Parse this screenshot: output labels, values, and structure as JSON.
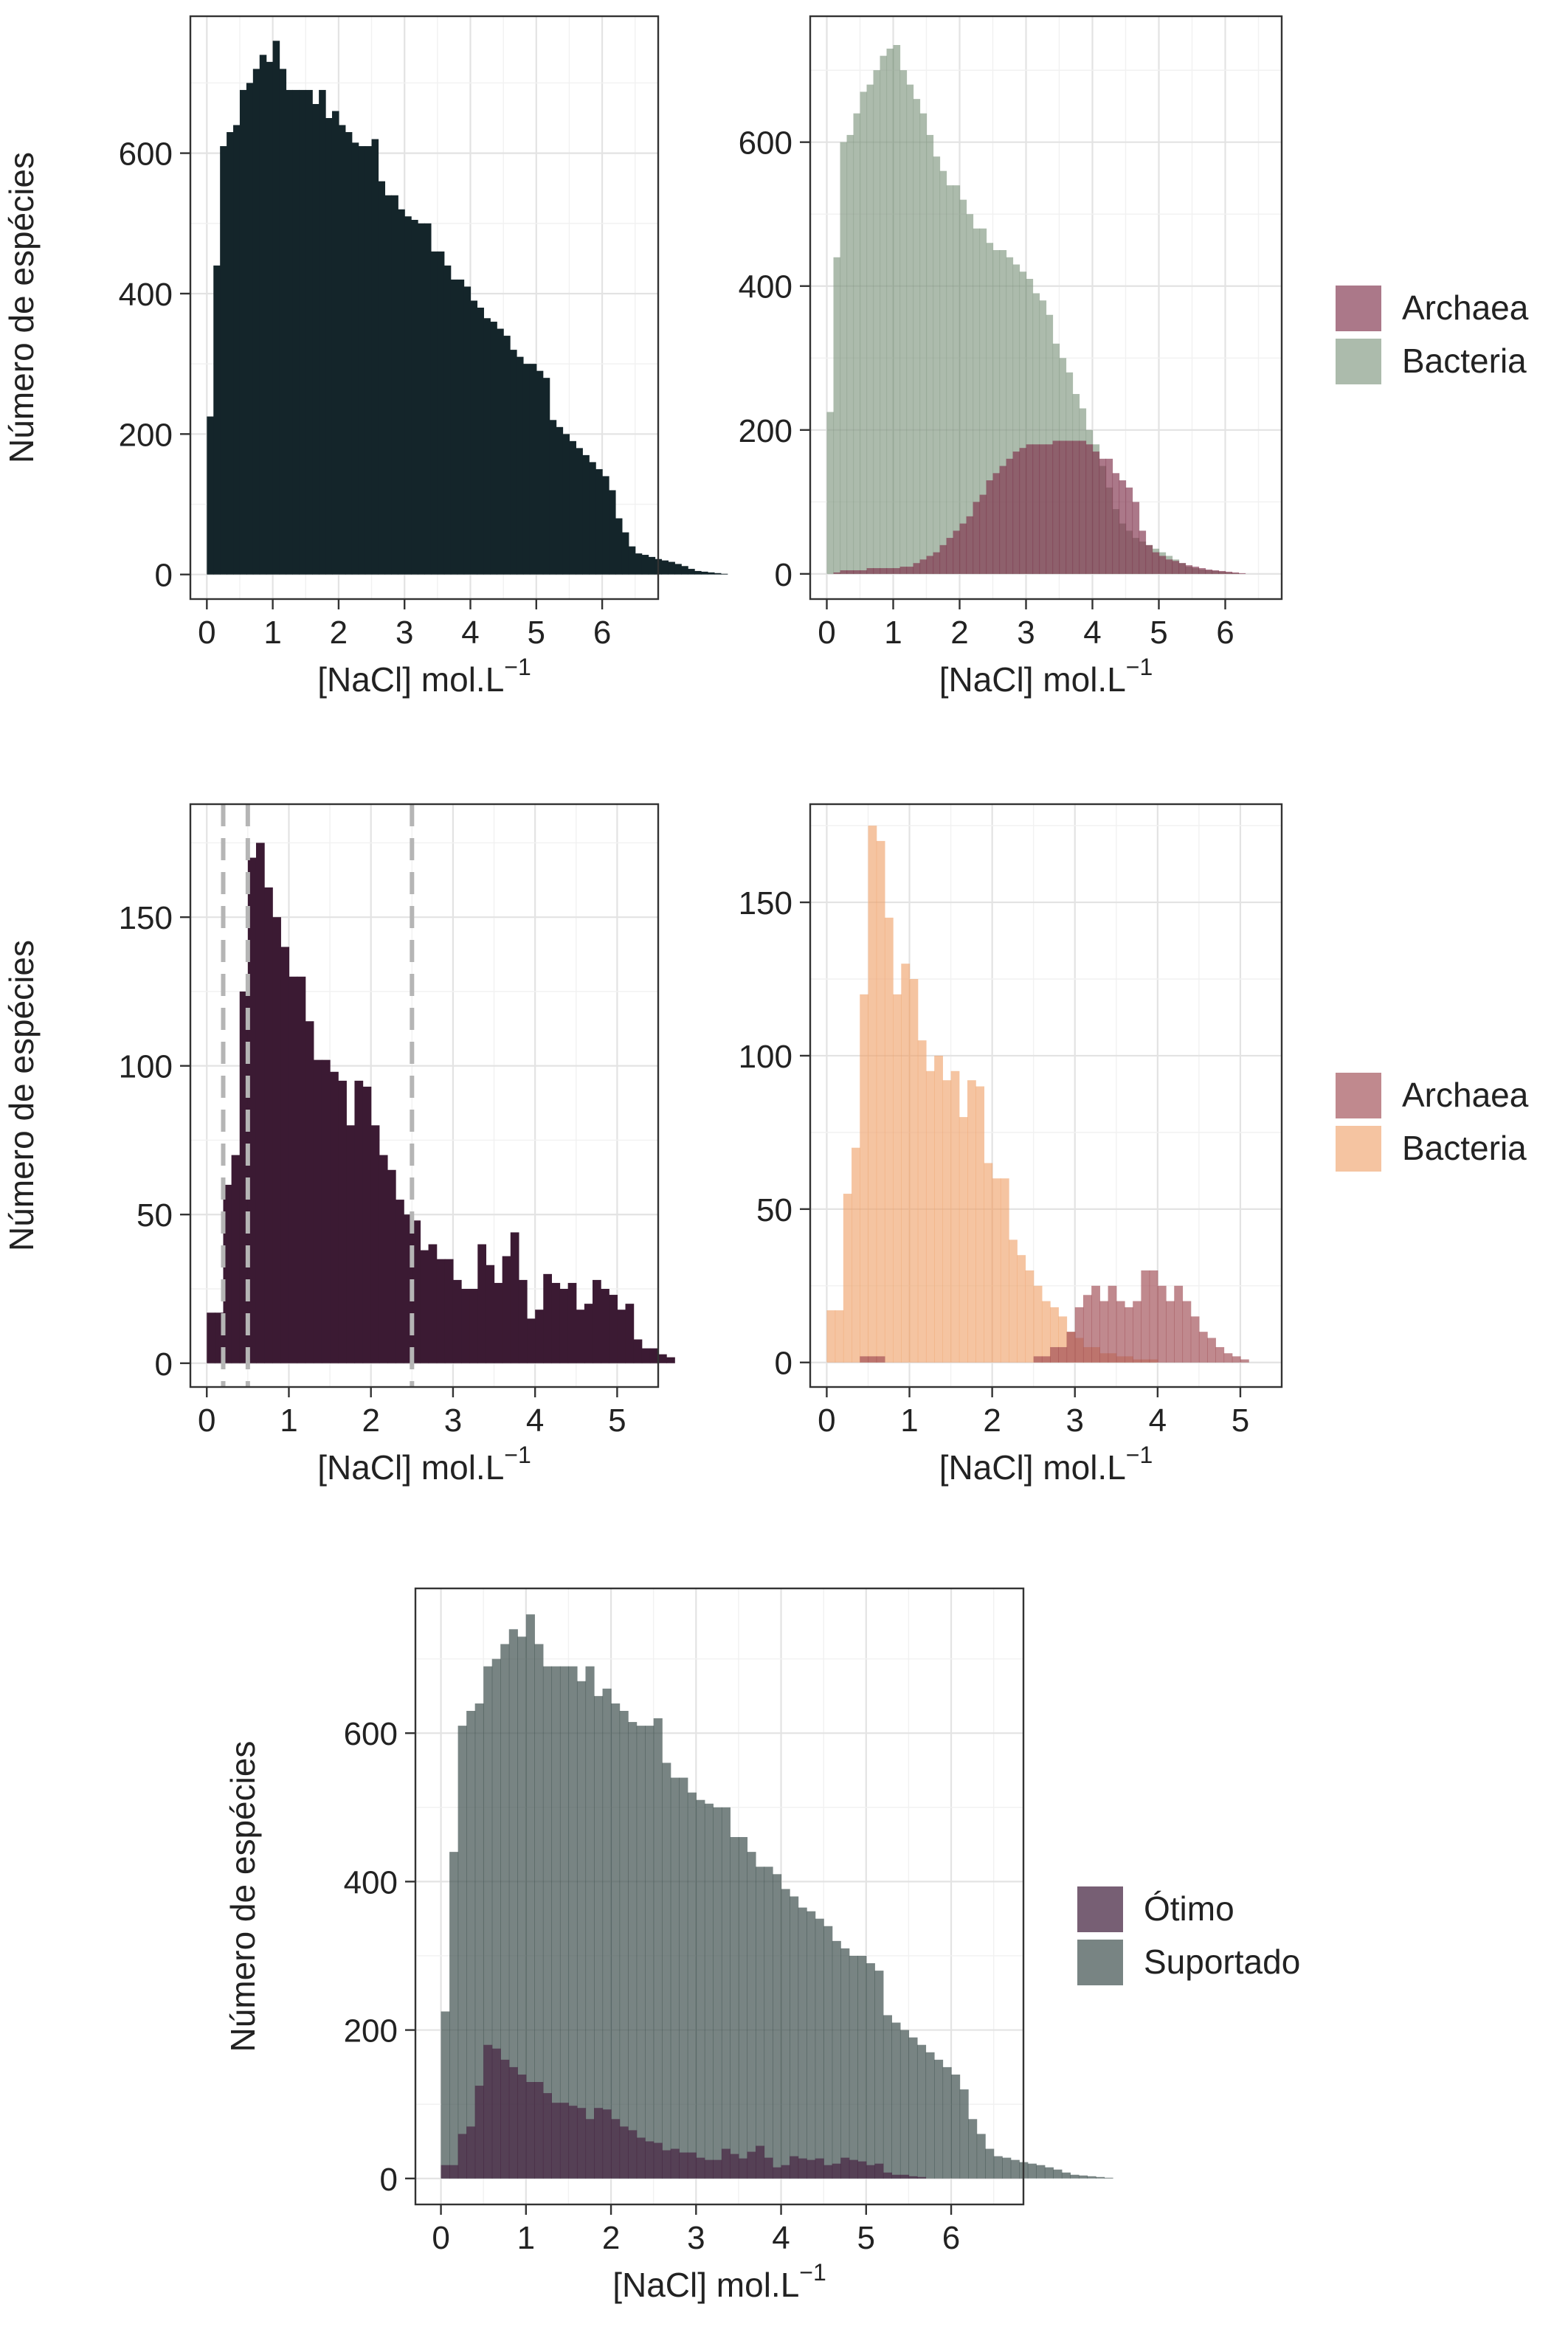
{
  "figure": {
    "ylabel": "Número de espécies",
    "xlabel_main": "[NaCl] mol.L",
    "xlabel_sup": "−1"
  },
  "chart_data": [
    {
      "id": "p1",
      "type": "histogram",
      "xlabel": "[NaCl] mol.L⁻¹",
      "ylabel": "Número de espécies",
      "xlim": [
        -0.25,
        6.85
      ],
      "ylim": [
        -35,
        795
      ],
      "x_ticks": [
        0,
        1,
        2,
        3,
        4,
        5,
        6
      ],
      "y_ticks": [
        0,
        200,
        400,
        600
      ],
      "grid": true,
      "bin_start": 0,
      "bin_width": 0.1,
      "series": [
        {
          "color": "#14252a",
          "alpha": 1.0,
          "values": [
            225,
            440,
            610,
            630,
            640,
            690,
            700,
            720,
            740,
            730,
            760,
            720,
            690,
            690,
            690,
            690,
            670,
            690,
            650,
            660,
            640,
            630,
            615,
            610,
            610,
            620,
            560,
            540,
            540,
            520,
            510,
            505,
            500,
            500,
            460,
            460,
            440,
            420,
            420,
            410,
            390,
            380,
            365,
            360,
            350,
            340,
            320,
            310,
            300,
            300,
            290,
            280,
            220,
            210,
            200,
            190,
            180,
            170,
            160,
            150,
            140,
            120,
            80,
            60,
            40,
            30,
            28,
            25,
            22,
            20,
            18,
            15,
            12,
            8,
            5,
            4,
            3,
            2,
            1,
            0,
            0
          ]
        }
      ]
    },
    {
      "id": "p2",
      "type": "histogram",
      "xlabel": "[NaCl] mol.L⁻¹",
      "ylabel": "",
      "xlim": [
        -0.25,
        6.85
      ],
      "ylim": [
        -35,
        775
      ],
      "x_ticks": [
        0,
        1,
        2,
        3,
        4,
        5,
        6
      ],
      "y_ticks": [
        0,
        200,
        400,
        600
      ],
      "grid": true,
      "legend": {
        "position": "right",
        "entries": [
          "Archaea",
          "Bacteria"
        ]
      },
      "bin_start": 0,
      "bin_width": 0.1,
      "series": [
        {
          "name": "Bacteria",
          "color": "#7f9680",
          "alpha": 0.65,
          "values": [
            225,
            440,
            600,
            610,
            640,
            670,
            680,
            700,
            720,
            730,
            735,
            700,
            680,
            660,
            640,
            610,
            580,
            560,
            540,
            540,
            520,
            500,
            480,
            480,
            460,
            450,
            450,
            440,
            430,
            420,
            410,
            390,
            380,
            360,
            320,
            300,
            280,
            250,
            230,
            200,
            180,
            150,
            120,
            90,
            70,
            60,
            50,
            45,
            40,
            35,
            30,
            25,
            20,
            15,
            10,
            8,
            6,
            5,
            4,
            3,
            2,
            1,
            0,
            0
          ]
        },
        {
          "name": "Archaea",
          "color": "#7e2f4a",
          "alpha": 0.65,
          "values": [
            0,
            2,
            5,
            5,
            5,
            5,
            8,
            8,
            8,
            8,
            8,
            10,
            10,
            15,
            20,
            25,
            30,
            40,
            50,
            60,
            70,
            80,
            100,
            110,
            130,
            140,
            150,
            160,
            170,
            175,
            180,
            180,
            180,
            180,
            185,
            185,
            185,
            185,
            185,
            180,
            170,
            160,
            160,
            140,
            130,
            120,
            100,
            60,
            40,
            30,
            25,
            20,
            18,
            15,
            12,
            10,
            8,
            6,
            5,
            4,
            3,
            2,
            1,
            0
          ]
        }
      ]
    },
    {
      "id": "p3",
      "type": "histogram",
      "xlabel": "[NaCl] mol.L⁻¹",
      "ylabel": "Número de espécies",
      "xlim": [
        -0.2,
        5.5
      ],
      "ylim": [
        -8,
        188
      ],
      "x_ticks": [
        0,
        1,
        2,
        3,
        4,
        5
      ],
      "y_ticks": [
        0,
        50,
        100,
        150
      ],
      "grid": true,
      "vlines": [
        0.2,
        0.5,
        2.5
      ],
      "bin_start": 0,
      "bin_width": 0.1,
      "series": [
        {
          "color": "#3b1a33",
          "alpha": 1.0,
          "values": [
            17,
            17,
            60,
            70,
            125,
            170,
            175,
            160,
            150,
            140,
            130,
            130,
            115,
            102,
            102,
            98,
            95,
            80,
            95,
            93,
            80,
            70,
            65,
            55,
            50,
            48,
            38,
            40,
            35,
            35,
            28,
            25,
            25,
            40,
            33,
            27,
            36,
            44,
            28,
            15,
            18,
            30,
            27,
            25,
            27,
            18,
            20,
            28,
            25,
            23,
            18,
            20,
            8,
            5,
            5,
            3,
            2,
            0,
            0
          ]
        }
      ]
    },
    {
      "id": "p4",
      "type": "histogram",
      "xlabel": "[NaCl] mol.L⁻¹",
      "ylabel": "",
      "xlim": [
        -0.2,
        5.5
      ],
      "ylim": [
        -8,
        182
      ],
      "x_ticks": [
        0,
        1,
        2,
        3,
        4,
        5
      ],
      "y_ticks": [
        0,
        50,
        100,
        150
      ],
      "grid": true,
      "legend": {
        "position": "right",
        "entries": [
          "Archaea",
          "Bacteria"
        ]
      },
      "bin_start": 0,
      "bin_width": 0.1,
      "series": [
        {
          "name": "Bacteria",
          "color": "#f0a46e",
          "alpha": 0.65,
          "values": [
            17,
            17,
            55,
            70,
            120,
            175,
            170,
            145,
            120,
            130,
            125,
            105,
            95,
            100,
            92,
            95,
            80,
            92,
            90,
            65,
            60,
            60,
            40,
            35,
            30,
            25,
            20,
            18,
            15,
            10,
            8,
            5,
            5,
            3,
            3,
            2,
            2,
            1,
            1,
            1,
            0,
            0,
            0,
            0,
            0,
            0,
            0,
            0,
            0,
            0,
            0,
            0,
            0,
            0
          ]
        },
        {
          "name": "Archaea",
          "color": "#9e4a52",
          "alpha": 0.65,
          "values": [
            0,
            0,
            0,
            0,
            2,
            2,
            2,
            0,
            0,
            0,
            0,
            0,
            0,
            0,
            0,
            0,
            0,
            0,
            0,
            0,
            0,
            0,
            0,
            0,
            0,
            2,
            2,
            5,
            5,
            10,
            18,
            22,
            25,
            20,
            25,
            20,
            18,
            20,
            30,
            30,
            25,
            20,
            25,
            20,
            15,
            10,
            8,
            5,
            3,
            2,
            1,
            0,
            0,
            0
          ]
        }
      ]
    },
    {
      "id": "p5",
      "type": "histogram",
      "xlabel": "[NaCl] mol.L⁻¹",
      "ylabel": "Número de espécies",
      "xlim": [
        -0.3,
        6.85
      ],
      "ylim": [
        -35,
        795
      ],
      "x_ticks": [
        0,
        1,
        2,
        3,
        4,
        5,
        6
      ],
      "y_ticks": [
        0,
        200,
        400,
        600
      ],
      "grid": true,
      "legend": {
        "position": "right",
        "entries": [
          "Ótimo",
          "Suportado"
        ]
      },
      "bin_start": 0,
      "bin_width": 0.1,
      "series": [
        {
          "name": "Suportado",
          "color": "#3e504e",
          "alpha": 0.7,
          "values": [
            225,
            440,
            610,
            630,
            640,
            690,
            700,
            720,
            740,
            730,
            760,
            720,
            690,
            690,
            690,
            690,
            670,
            690,
            650,
            660,
            640,
            630,
            615,
            610,
            610,
            620,
            560,
            540,
            540,
            520,
            510,
            505,
            500,
            500,
            460,
            460,
            440,
            420,
            420,
            410,
            390,
            380,
            365,
            360,
            350,
            340,
            320,
            310,
            300,
            300,
            290,
            280,
            220,
            210,
            200,
            190,
            180,
            170,
            160,
            150,
            140,
            120,
            80,
            60,
            40,
            30,
            28,
            25,
            22,
            20,
            18,
            15,
            12,
            8,
            5,
            4,
            3,
            2,
            1,
            0,
            0
          ]
        },
        {
          "name": "Ótimo",
          "color": "#4a2a45",
          "alpha": 0.75,
          "values": [
            18,
            18,
            60,
            70,
            125,
            180,
            175,
            160,
            150,
            140,
            130,
            130,
            115,
            102,
            102,
            98,
            95,
            80,
            95,
            93,
            80,
            70,
            65,
            55,
            50,
            48,
            38,
            40,
            35,
            35,
            28,
            25,
            25,
            40,
            33,
            27,
            36,
            44,
            28,
            15,
            18,
            30,
            27,
            25,
            27,
            18,
            20,
            28,
            25,
            23,
            18,
            20,
            8,
            5,
            5,
            3,
            2,
            0,
            0
          ]
        }
      ]
    }
  ]
}
